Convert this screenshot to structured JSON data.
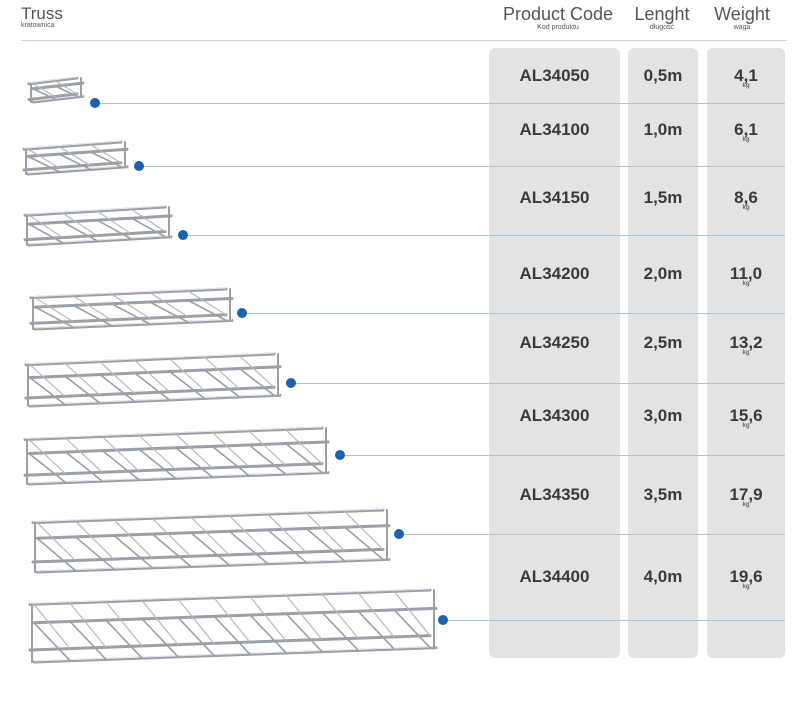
{
  "header": {
    "title": "Truss",
    "subtitle": "kratownica",
    "columns": {
      "code": {
        "label": "Product Code",
        "sub": "Kod produktu"
      },
      "length": {
        "label": "Lenght",
        "sub": "długość"
      },
      "weight": {
        "label": "Weight",
        "sub": "waga"
      }
    }
  },
  "weight_unit": "kg",
  "rows": [
    {
      "code": "AL34050",
      "length": "0,5m",
      "weight": "4,1"
    },
    {
      "code": "AL34100",
      "length": "1,0m",
      "weight": "6,1"
    },
    {
      "code": "AL34150",
      "length": "1,5m",
      "weight": "8,6"
    },
    {
      "code": "AL34200",
      "length": "2,0m",
      "weight": "11,0"
    },
    {
      "code": "AL34250",
      "length": "2,5m",
      "weight": "13,2"
    },
    {
      "code": "AL34300",
      "length": "3,0m",
      "weight": "15,6"
    },
    {
      "code": "AL34350",
      "length": "3,5m",
      "weight": "17,9"
    },
    {
      "code": "AL34400",
      "length": "4,0m",
      "weight": "19,6"
    }
  ],
  "colors": {
    "accent_dot": "#1b63ad",
    "panel": "#e3e3e3",
    "rule": "#a9c3db"
  }
}
